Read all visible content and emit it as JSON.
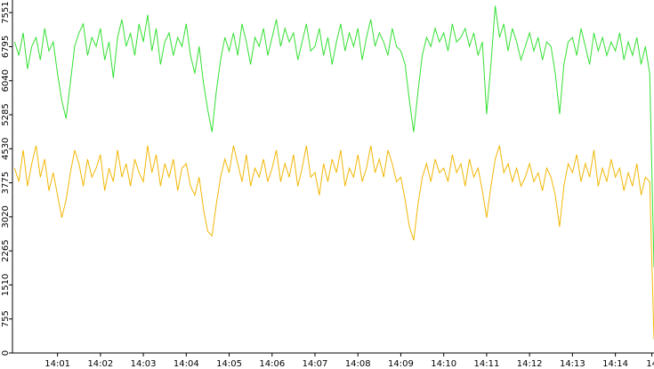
{
  "chart_data": {
    "type": "line",
    "x": [
      0,
      0.1,
      0.2,
      0.3,
      0.4,
      0.5,
      0.6,
      0.7,
      0.8,
      0.9,
      1,
      1.1,
      1.2,
      1.3,
      1.4,
      1.5,
      1.6,
      1.7,
      1.8,
      1.9,
      2,
      2.1,
      2.2,
      2.3,
      2.4,
      2.5,
      2.6,
      2.7,
      2.8,
      2.9,
      3,
      3.1,
      3.2,
      3.3,
      3.4,
      3.5,
      3.6,
      3.7,
      3.8,
      3.9,
      4,
      4.1,
      4.2,
      4.3,
      4.4,
      4.5,
      4.6,
      4.7,
      4.8,
      4.9,
      5,
      5.1,
      5.2,
      5.3,
      5.4,
      5.5,
      5.6,
      5.7,
      5.8,
      5.9,
      6,
      6.1,
      6.2,
      6.3,
      6.4,
      6.5,
      6.6,
      6.7,
      6.8,
      6.9,
      7,
      7.1,
      7.2,
      7.3,
      7.4,
      7.5,
      7.6,
      7.7,
      7.8,
      7.9,
      8,
      8.1,
      8.2,
      8.3,
      8.4,
      8.5,
      8.6,
      8.7,
      8.8,
      8.9,
      9,
      9.1,
      9.2,
      9.3,
      9.4,
      9.5,
      9.6,
      9.7,
      9.8,
      9.9,
      10,
      10.1,
      10.2,
      10.3,
      10.4,
      10.5,
      10.6,
      10.7,
      10.8,
      10.9,
      11,
      11.1,
      11.2,
      11.3,
      11.4,
      11.5,
      11.6,
      11.7,
      11.8,
      11.9,
      12,
      12.1,
      12.2,
      12.3,
      12.4,
      12.5,
      12.6,
      12.7,
      12.8,
      12.9,
      13,
      13.1,
      13.2,
      13.3,
      13.4,
      13.5,
      13.6,
      13.7,
      13.8,
      13.9,
      14,
      14.1,
      14.2,
      14.3,
      14.4,
      14.5,
      14.6,
      14.7,
      14.8,
      14.9
    ],
    "series": [
      {
        "color": "#33e033",
        "values": [
          6900,
          6600,
          7100,
          6300,
          6800,
          7000,
          6500,
          7200,
          6700,
          6900,
          6200,
          5600,
          5200,
          6000,
          6800,
          7100,
          7300,
          6600,
          7000,
          6800,
          7200,
          6500,
          6900,
          6100,
          7000,
          7400,
          6800,
          7100,
          6600,
          7300,
          6900,
          7500,
          6700,
          7200,
          6400,
          6900,
          7100,
          6600,
          7000,
          6800,
          7300,
          6600,
          6200,
          6800,
          6000,
          5400,
          4900,
          5800,
          6500,
          7000,
          6700,
          7100,
          6600,
          7300,
          6900,
          6400,
          7000,
          6800,
          7200,
          6600,
          7000,
          7400,
          6800,
          7200,
          6900,
          7100,
          6500,
          6900,
          7300,
          6700,
          6800,
          7200,
          6600,
          7000,
          6400,
          6900,
          7300,
          6700,
          7100,
          6800,
          7200,
          6500,
          7000,
          7400,
          6800,
          7100,
          6900,
          6600,
          7200,
          6800,
          6700,
          6400,
          5600,
          4900,
          5800,
          6600,
          7000,
          6800,
          7200,
          6900,
          7100,
          6700,
          7300,
          6900,
          7000,
          7200,
          6800,
          7100,
          6600,
          6900,
          5300,
          6400,
          7700,
          7000,
          7300,
          6700,
          7200,
          6900,
          6500,
          6800,
          7100,
          6700,
          7000,
          6500,
          6900,
          6800,
          6200,
          5300,
          6400,
          6900,
          7000,
          6600,
          7200,
          6800,
          6400,
          7100,
          6700,
          7000,
          6600,
          6900,
          6700,
          7100,
          6500,
          6900,
          6600,
          7000,
          6400,
          6800,
          6200,
          1900
        ]
      },
      {
        "color": "#f2b705",
        "values": [
          4100,
          3800,
          4500,
          3700,
          4200,
          4600,
          3900,
          4300,
          3600,
          4000,
          3500,
          3000,
          3400,
          4000,
          4500,
          4200,
          3700,
          4300,
          3900,
          4100,
          4400,
          3600,
          4100,
          3800,
          4500,
          3900,
          4200,
          3700,
          4300,
          4000,
          3800,
          4600,
          4000,
          4400,
          3700,
          4200,
          3900,
          4300,
          3600,
          4100,
          4200,
          3700,
          3500,
          3900,
          3200,
          2700,
          2600,
          3300,
          3900,
          4300,
          4000,
          4600,
          4200,
          3800,
          4400,
          3700,
          4100,
          3900,
          4300,
          3800,
          4100,
          4500,
          3800,
          4200,
          3900,
          4400,
          3700,
          4100,
          4600,
          3900,
          4000,
          3500,
          4200,
          3800,
          4300,
          4000,
          4500,
          3700,
          4100,
          3900,
          4400,
          3800,
          4100,
          4600,
          4000,
          4300,
          3900,
          4500,
          4200,
          3800,
          3900,
          3400,
          2800,
          2500,
          3300,
          3900,
          4200,
          3800,
          4300,
          4000,
          4100,
          3800,
          4400,
          4000,
          4200,
          3700,
          4300,
          3900,
          4100,
          3600,
          3000,
          3700,
          4300,
          4600,
          4000,
          4200,
          3800,
          4100,
          3700,
          3900,
          4200,
          3800,
          4000,
          3600,
          4100,
          3900,
          3500,
          2800,
          3700,
          4200,
          4000,
          4400,
          3800,
          4200,
          3900,
          4500,
          3700,
          4100,
          3800,
          4300,
          3900,
          4100,
          3600,
          4000,
          3700,
          4200,
          3500,
          3900,
          3800,
          300
        ]
      }
    ],
    "xlim": [
      -0.05,
      14.9
    ],
    "xticks": [
      {
        "value": 1,
        "label": "14:01"
      },
      {
        "value": 2,
        "label": "14:02"
      },
      {
        "value": 3,
        "label": "14:03"
      },
      {
        "value": 4,
        "label": "14:04"
      },
      {
        "value": 5,
        "label": "14:05"
      },
      {
        "value": 6,
        "label": "14:06"
      },
      {
        "value": 7,
        "label": "14:07"
      },
      {
        "value": 8,
        "label": "14:08"
      },
      {
        "value": 9,
        "label": "14:09"
      },
      {
        "value": 10,
        "label": "14:10"
      },
      {
        "value": 11,
        "label": "14:11"
      },
      {
        "value": 12,
        "label": "14:12"
      },
      {
        "value": 13,
        "label": "14:13"
      },
      {
        "value": 14,
        "label": "14:14"
      },
      {
        "value": 14.85,
        "label": "14"
      }
    ],
    "ylim": [
      0,
      7830
    ],
    "yticks": [
      0,
      755,
      1510,
      2265,
      3020,
      3775,
      4530,
      5285,
      6040,
      6795,
      7551
    ]
  }
}
